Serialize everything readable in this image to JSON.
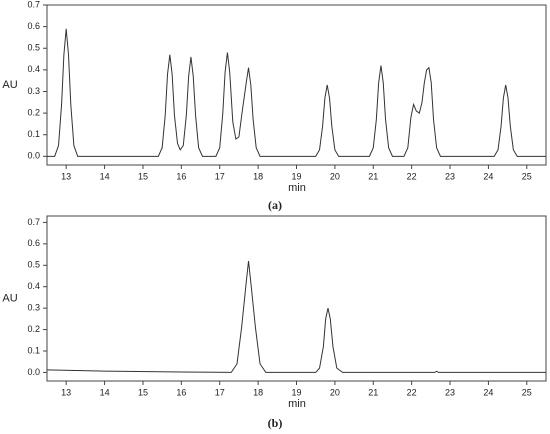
{
  "chart_data": [
    {
      "type": "line",
      "xlabel": "min",
      "ylabel": "AU",
      "caption": "(a)",
      "color": "#333333",
      "xlim": [
        12.5,
        25.5
      ],
      "xticks": [
        13,
        14,
        15,
        16,
        17,
        18,
        19,
        20,
        21,
        22,
        23,
        24,
        25
      ],
      "ylim": [
        -0.04,
        0.7
      ],
      "yticks": [
        {
          "value": 0,
          "label": "0.0"
        },
        0.1,
        0.2,
        0.3,
        0.4,
        0.5,
        0.6,
        0.7
      ],
      "x": [
        12.5,
        12.7,
        12.8,
        12.88,
        12.94,
        13.0,
        13.06,
        13.12,
        13.2,
        13.3,
        15.4,
        15.5,
        15.58,
        15.64,
        15.7,
        15.76,
        15.82,
        15.9,
        15.97,
        16.05,
        16.13,
        16.19,
        16.25,
        16.31,
        16.37,
        16.45,
        16.55,
        16.9,
        17.0,
        17.08,
        17.14,
        17.2,
        17.26,
        17.34,
        17.42,
        17.5,
        17.58,
        17.69,
        17.75,
        17.81,
        17.87,
        17.95,
        18.05,
        19.5,
        19.6,
        19.68,
        19.74,
        19.8,
        19.86,
        19.92,
        20.0,
        20.1,
        20.9,
        21.0,
        21.08,
        21.14,
        21.2,
        21.26,
        21.32,
        21.4,
        21.5,
        21.8,
        21.9,
        21.98,
        22.05,
        22.12,
        22.2,
        22.27,
        22.33,
        22.39,
        22.45,
        22.51,
        22.57,
        22.65,
        22.75,
        24.15,
        24.25,
        24.33,
        24.39,
        24.45,
        24.51,
        24.57,
        24.65,
        24.75,
        25.5
      ],
      "values": [
        0.0,
        0.0,
        0.05,
        0.24,
        0.47,
        0.59,
        0.47,
        0.24,
        0.05,
        0.0,
        0.0,
        0.04,
        0.19,
        0.38,
        0.47,
        0.38,
        0.19,
        0.06,
        0.03,
        0.05,
        0.19,
        0.37,
        0.46,
        0.37,
        0.19,
        0.04,
        0.0,
        0.0,
        0.04,
        0.2,
        0.39,
        0.48,
        0.39,
        0.16,
        0.08,
        0.09,
        0.2,
        0.34,
        0.41,
        0.33,
        0.17,
        0.04,
        0.0,
        0.0,
        0.03,
        0.14,
        0.27,
        0.33,
        0.27,
        0.14,
        0.03,
        0.0,
        0.0,
        0.04,
        0.17,
        0.34,
        0.42,
        0.34,
        0.17,
        0.04,
        0.0,
        0.0,
        0.04,
        0.18,
        0.24,
        0.21,
        0.2,
        0.25,
        0.34,
        0.4,
        0.41,
        0.34,
        0.17,
        0.04,
        0.0,
        0.0,
        0.03,
        0.14,
        0.27,
        0.33,
        0.27,
        0.14,
        0.03,
        0.0,
        0.0
      ]
    },
    {
      "type": "line",
      "xlabel": "min",
      "ylabel": "AU",
      "caption": "(b)",
      "color": "#333333",
      "xlim": [
        12.5,
        25.5
      ],
      "xticks": [
        13,
        14,
        15,
        16,
        17,
        18,
        19,
        20,
        21,
        22,
        23,
        24,
        25
      ],
      "ylim": [
        -0.04,
        0.73
      ],
      "yticks": [
        {
          "value": 0,
          "label": "0.0"
        },
        0.1,
        0.2,
        0.3,
        0.4,
        0.5,
        0.6,
        0.7
      ],
      "x": [
        12.5,
        14,
        16,
        17.3,
        17.45,
        17.57,
        17.69,
        17.75,
        17.81,
        17.93,
        18.05,
        18.2,
        19.5,
        19.6,
        19.7,
        19.76,
        19.82,
        19.88,
        19.95,
        20.05,
        20.2,
        22.6,
        22.65,
        22.7,
        25.5
      ],
      "values": [
        0.012,
        0.006,
        0.002,
        0.0,
        0.04,
        0.21,
        0.42,
        0.52,
        0.42,
        0.21,
        0.04,
        0.0,
        0.0,
        0.02,
        0.12,
        0.25,
        0.3,
        0.25,
        0.12,
        0.02,
        0.0,
        0.0,
        0.005,
        0.0,
        0.0
      ]
    }
  ]
}
